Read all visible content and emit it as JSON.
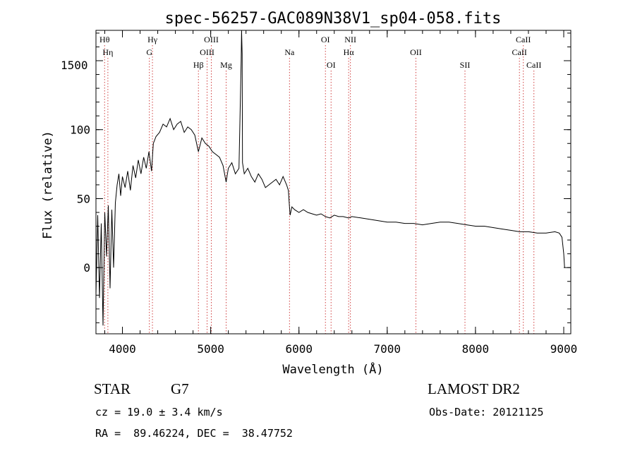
{
  "chart_data": {
    "type": "line",
    "title": "spec-56257-GAC089N38V1_sp04-058.fits",
    "xlabel": "Wavelength (Å)",
    "ylabel": "Flux (relative)",
    "xlim": [
      3700,
      9080
    ],
    "ylim": [
      -48,
      172
    ],
    "x_ticks": [
      "4000",
      "5000",
      "6000",
      "7000",
      "8000",
      "9000"
    ],
    "y_ticks": [
      "0",
      "50",
      "100",
      "150"
    ],
    "grid": false,
    "series": [
      {
        "color": "#000000",
        "x": [
          3700,
          3720,
          3740,
          3760,
          3780,
          3800,
          3820,
          3840,
          3860,
          3880,
          3900,
          3920,
          3940,
          3960,
          3980,
          4000,
          4030,
          4060,
          4090,
          4120,
          4150,
          4180,
          4210,
          4240,
          4270,
          4300,
          4330,
          4350,
          4380,
          4420,
          4460,
          4500,
          4540,
          4580,
          4620,
          4660,
          4700,
          4740,
          4780,
          4820,
          4861,
          4900,
          4940,
          4980,
          5020,
          5060,
          5100,
          5140,
          5175,
          5200,
          5240,
          5280,
          5320,
          5345,
          5350,
          5356,
          5360,
          5380,
          5420,
          5460,
          5500,
          5540,
          5580,
          5620,
          5660,
          5700,
          5740,
          5780,
          5820,
          5860,
          5880,
          5893,
          5900,
          5920,
          5950,
          6000,
          6050,
          6100,
          6150,
          6200,
          6250,
          6300,
          6350,
          6400,
          6450,
          6500,
          6563,
          6600,
          6700,
          6800,
          6900,
          7000,
          7100,
          7200,
          7300,
          7400,
          7500,
          7600,
          7700,
          7800,
          7900,
          8000,
          8100,
          8200,
          8300,
          8400,
          8500,
          8600,
          8700,
          8800,
          8900,
          8950,
          8980,
          9000,
          9010
        ],
        "values": [
          -20,
          38,
          -22,
          32,
          -42,
          40,
          8,
          45,
          -15,
          42,
          0,
          47,
          60,
          68,
          52,
          66,
          58,
          70,
          56,
          74,
          65,
          78,
          68,
          80,
          72,
          84,
          70,
          90,
          95,
          98,
          104,
          102,
          108,
          100,
          104,
          106,
          98,
          102,
          100,
          96,
          84,
          94,
          90,
          88,
          84,
          82,
          80,
          74,
          62,
          72,
          76,
          68,
          72,
          150,
          172,
          155,
          76,
          68,
          72,
          66,
          62,
          68,
          64,
          58,
          60,
          62,
          64,
          60,
          66,
          60,
          56,
          44,
          38,
          44,
          42,
          40,
          42,
          40,
          39,
          38,
          39,
          37,
          36,
          38,
          37,
          37,
          36,
          37,
          36,
          35,
          34,
          33,
          33,
          32,
          32,
          31,
          32,
          33,
          33,
          32,
          31,
          30,
          30,
          29,
          28,
          27,
          26,
          26,
          25,
          25,
          26,
          25,
          22,
          10,
          0
        ]
      }
    ],
    "line_markers": [
      {
        "label": "Hθ",
        "wavelength": 3798,
        "row": 0
      },
      {
        "label": "Hη",
        "wavelength": 3835,
        "row": 1
      },
      {
        "label": "Hγ",
        "wavelength": 4340,
        "row": 0
      },
      {
        "label": "G",
        "wavelength": 4305,
        "row": 1
      },
      {
        "label": "Hβ",
        "wavelength": 4861,
        "row": 2
      },
      {
        "label": "OIII",
        "wavelength": 5007,
        "row": 0
      },
      {
        "label": "OIII",
        "wavelength": 4959,
        "row": 1
      },
      {
        "label": "Mg",
        "wavelength": 5175,
        "row": 2
      },
      {
        "label": "Na",
        "wavelength": 5893,
        "row": 1
      },
      {
        "label": "OI",
        "wavelength": 6300,
        "row": 0
      },
      {
        "label": "OI",
        "wavelength": 6364,
        "row": 2
      },
      {
        "label": "NII",
        "wavelength": 6583,
        "row": 0
      },
      {
        "label": "Hα",
        "wavelength": 6563,
        "row": 1
      },
      {
        "label": "OII",
        "wavelength": 7325,
        "row": 1
      },
      {
        "label": "SII",
        "wavelength": 7881,
        "row": 2
      },
      {
        "label": "CaII",
        "wavelength": 8542,
        "row": 0
      },
      {
        "label": "CaII",
        "wavelength": 8498,
        "row": 1
      },
      {
        "label": "CaII",
        "wavelength": 8662,
        "row": 2
      }
    ],
    "overlap_label": "1500"
  },
  "info": {
    "class_label": "STAR",
    "subclass": "G7",
    "survey": "LAMOST DR2",
    "cz": "cz = 19.0 ± 3.4 km/s",
    "obs_date": "Obs-Date: 20121125",
    "coords": "RA =  89.46224, DEC =  38.47752"
  },
  "colors": {
    "spectrum": "#000000",
    "line_marker": "#d04040",
    "axes": "#000000"
  }
}
